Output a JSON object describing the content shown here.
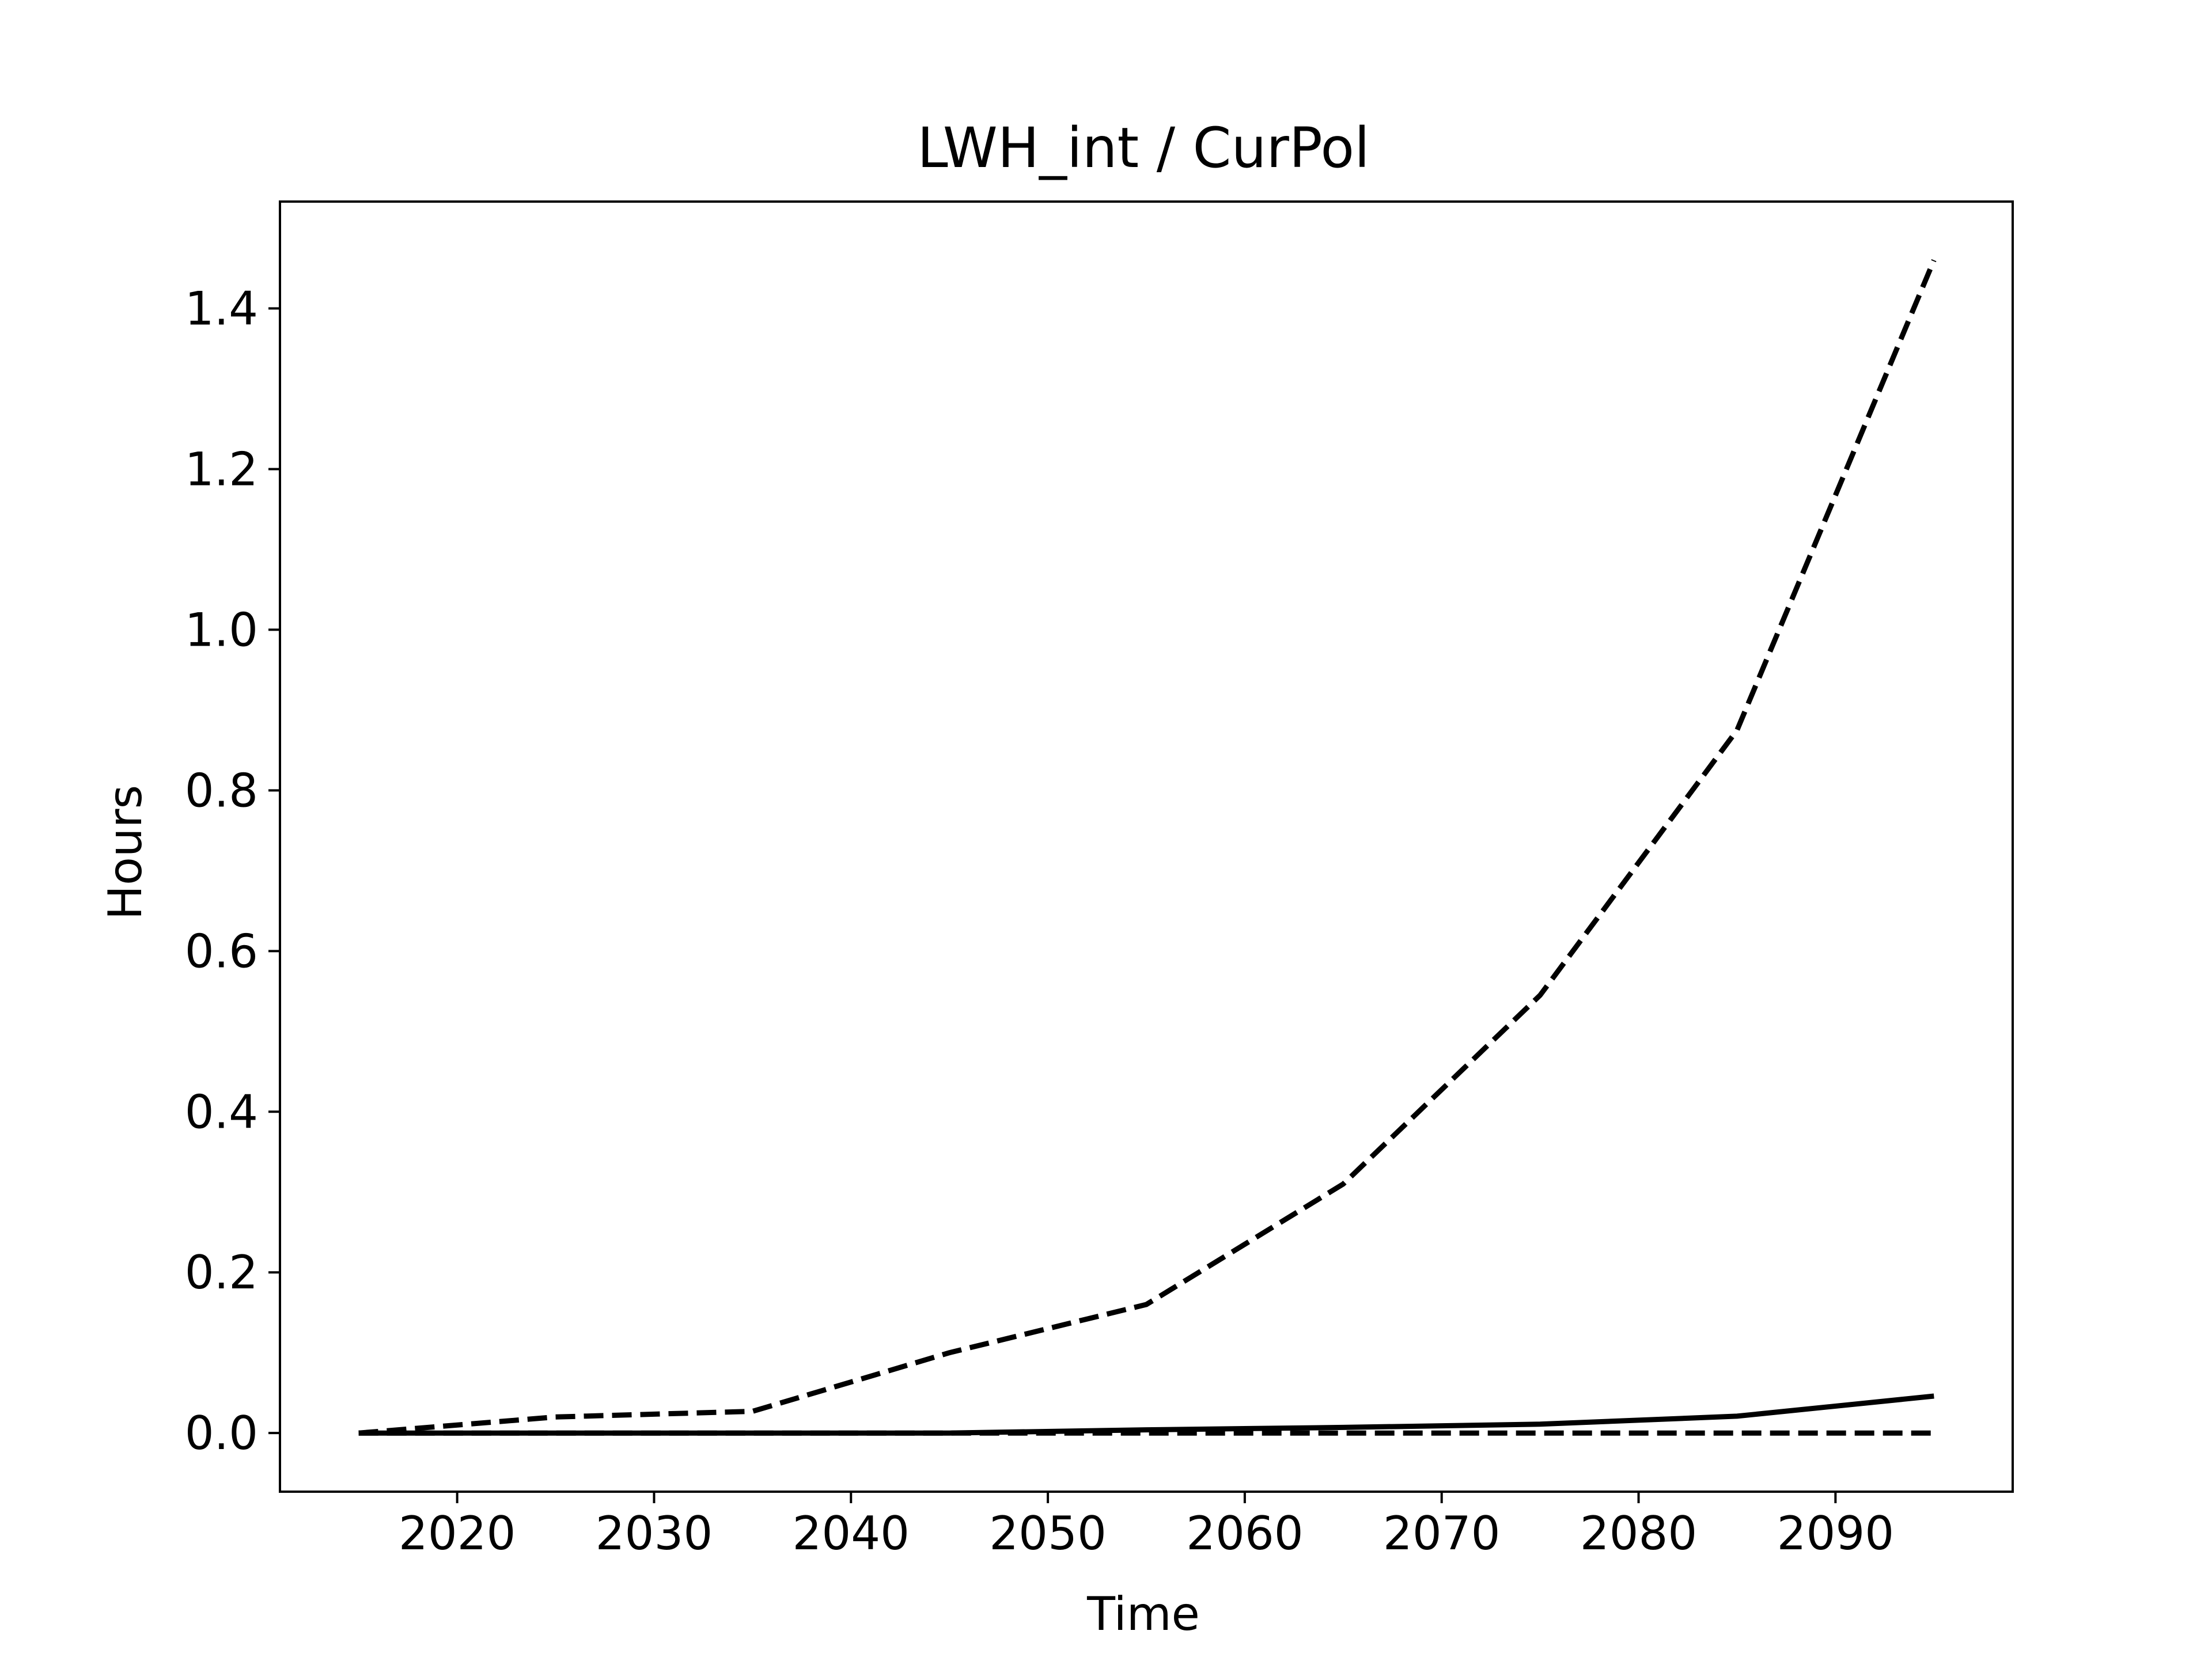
{
  "chart_data": {
    "type": "line",
    "title": "LWH_int / CurPol",
    "xlabel": "Time",
    "ylabel": "Hours",
    "xlim": [
      2011,
      2099
    ],
    "ylim": [
      -0.073,
      1.533
    ],
    "x_ticks": [
      2020,
      2030,
      2040,
      2050,
      2060,
      2070,
      2080,
      2090
    ],
    "y_ticks": [
      0.0,
      0.2,
      0.4,
      0.6,
      0.8,
      1.0,
      1.2,
      1.4
    ],
    "y_tick_labels": [
      "0.0",
      "0.2",
      "0.4",
      "0.6",
      "0.8",
      "1.0",
      "1.2",
      "1.4"
    ],
    "grid": false,
    "legend": false,
    "x": [
      2015,
      2025,
      2035,
      2045,
      2055,
      2065,
      2075,
      2085,
      2095
    ],
    "series": [
      {
        "style": "dashed",
        "color": "#000000",
        "values": [
          0.0,
          0.02,
          0.027,
          0.1,
          0.16,
          0.31,
          0.545,
          0.875,
          1.46
        ]
      },
      {
        "style": "solid",
        "color": "#000000",
        "values": [
          0.0,
          0.0,
          0.0,
          0.0,
          0.004,
          0.007,
          0.011,
          0.021,
          0.046
        ]
      },
      {
        "style": "dashed",
        "color": "#000000",
        "values": [
          0.0,
          0.0,
          0.0,
          0.0,
          0.0,
          0.0,
          0.0,
          0.0,
          0.0
        ]
      }
    ]
  }
}
